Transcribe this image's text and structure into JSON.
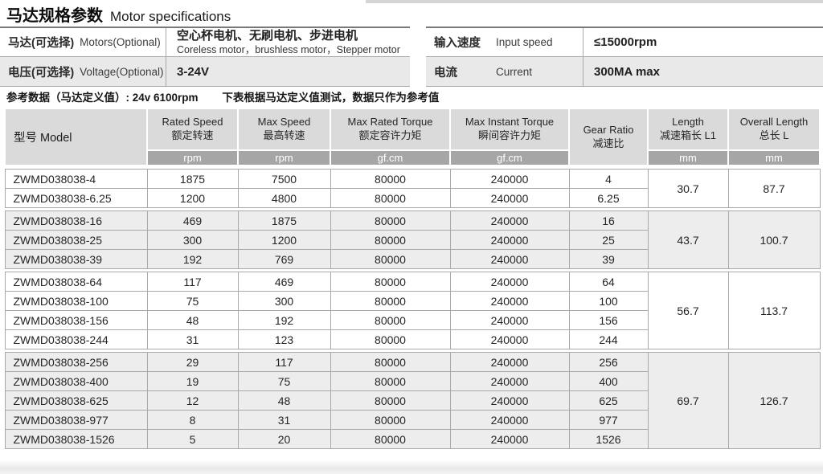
{
  "title": {
    "zh": "马达规格参数",
    "en": "Motor specifications"
  },
  "motor_info": {
    "rows": [
      {
        "label_zh": "马达(可选择)",
        "label_en": "Motors(Optional)",
        "value_zh": "空心杯电机、无刷电机、步进电机",
        "value_en": "Coreless motor，brushless motor，Stepper motor"
      },
      {
        "label_zh": "电压(可选择)",
        "label_en": "Voltage(Optional)",
        "value": "3-24V"
      }
    ]
  },
  "power_info": {
    "rows": [
      {
        "label_zh": "输入速度",
        "label_en": "Input speed",
        "value": "≤15000rpm"
      },
      {
        "label_zh": "电流",
        "label_en": "Current",
        "value": "300MA max"
      }
    ]
  },
  "reference_note": {
    "part1": "参考数据（马达定义值）: 24v 6100rpm",
    "part2": "下表根据马达定义值测试，数据只作为参考值"
  },
  "spec_table": {
    "model_header": "型号 Model",
    "columns": [
      {
        "en": "Rated Speed",
        "zh": "额定转速",
        "unit": "rpm"
      },
      {
        "en": "Max Speed",
        "zh": "最高转速",
        "unit": "rpm"
      },
      {
        "en": "Max Rated Torque",
        "zh": "额定容许力矩",
        "unit": "gf.cm"
      },
      {
        "en": "Max Instant Torque",
        "zh": "瞬间容许力矩",
        "unit": "gf.cm"
      },
      {
        "en": "Gear Ratio",
        "zh": "减速比",
        "unit": ""
      },
      {
        "en": "Length",
        "zh": "减速箱长 L1",
        "unit": "mm"
      },
      {
        "en": "Overall Length",
        "zh": "总长 L",
        "unit": "mm"
      }
    ],
    "groups": [
      {
        "length_l1": "30.7",
        "overall_length": "87.7",
        "rows": [
          {
            "model": "ZWMD038038-4",
            "rated_speed": "1875",
            "max_speed": "7500",
            "max_rated_torque": "80000",
            "max_instant_torque": "240000",
            "gear_ratio": "4"
          },
          {
            "model": "ZWMD038038-6.25",
            "rated_speed": "1200",
            "max_speed": "4800",
            "max_rated_torque": "80000",
            "max_instant_torque": "240000",
            "gear_ratio": "6.25"
          }
        ]
      },
      {
        "length_l1": "43.7",
        "overall_length": "100.7",
        "rows": [
          {
            "model": "ZWMD038038-16",
            "rated_speed": "469",
            "max_speed": "1875",
            "max_rated_torque": "80000",
            "max_instant_torque": "240000",
            "gear_ratio": "16"
          },
          {
            "model": "ZWMD038038-25",
            "rated_speed": "300",
            "max_speed": "1200",
            "max_rated_torque": "80000",
            "max_instant_torque": "240000",
            "gear_ratio": "25"
          },
          {
            "model": "ZWMD038038-39",
            "rated_speed": "192",
            "max_speed": "769",
            "max_rated_torque": "80000",
            "max_instant_torque": "240000",
            "gear_ratio": "39"
          }
        ]
      },
      {
        "length_l1": "56.7",
        "overall_length": "113.7",
        "rows": [
          {
            "model": "ZWMD038038-64",
            "rated_speed": "117",
            "max_speed": "469",
            "max_rated_torque": "80000",
            "max_instant_torque": "240000",
            "gear_ratio": "64"
          },
          {
            "model": "ZWMD038038-100",
            "rated_speed": "75",
            "max_speed": "300",
            "max_rated_torque": "80000",
            "max_instant_torque": "240000",
            "gear_ratio": "100"
          },
          {
            "model": "ZWMD038038-156",
            "rated_speed": "48",
            "max_speed": "192",
            "max_rated_torque": "80000",
            "max_instant_torque": "240000",
            "gear_ratio": "156"
          },
          {
            "model": "ZWMD038038-244",
            "rated_speed": "31",
            "max_speed": "123",
            "max_rated_torque": "80000",
            "max_instant_torque": "240000",
            "gear_ratio": "244"
          }
        ]
      },
      {
        "length_l1": "69.7",
        "overall_length": "126.7",
        "rows": [
          {
            "model": "ZWMD038038-256",
            "rated_speed": "29",
            "max_speed": "117",
            "max_rated_torque": "80000",
            "max_instant_torque": "240000",
            "gear_ratio": "256"
          },
          {
            "model": "ZWMD038038-400",
            "rated_speed": "19",
            "max_speed": "75",
            "max_rated_torque": "80000",
            "max_instant_torque": "240000",
            "gear_ratio": "400"
          },
          {
            "model": "ZWMD038038-625",
            "rated_speed": "12",
            "max_speed": "48",
            "max_rated_torque": "80000",
            "max_instant_torque": "240000",
            "gear_ratio": "625"
          },
          {
            "model": "ZWMD038038-977",
            "rated_speed": "8",
            "max_speed": "31",
            "max_rated_torque": "80000",
            "max_instant_torque": "240000",
            "gear_ratio": "977"
          },
          {
            "model": "ZWMD038038-1526",
            "rated_speed": "5",
            "max_speed": "20",
            "max_rated_torque": "80000",
            "max_instant_torque": "240000",
            "gear_ratio": "1526"
          }
        ]
      }
    ]
  },
  "colors": {
    "header_bg": "#dadada",
    "unit_row_bg": "#a6a6a6",
    "shade_row_bg": "#ededed",
    "border": "#a9a9a9"
  }
}
